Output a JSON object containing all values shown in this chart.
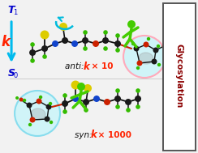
{
  "bg_color": "#f2f2f2",
  "t1_text": "T",
  "t1_sub": "1",
  "t1_color": "#0000cc",
  "k_color": "#ff2200",
  "s0_text": "S",
  "s0_sub": "0",
  "s0_color": "#0000cc",
  "arrow_color": "#00bbee",
  "glyco_text": "Glycosylation",
  "glyco_color": "#8b0000",
  "glyco_box_edge": "#555555",
  "anti_text": "anti: ",
  "anti_k": "k",
  "anti_mult": " × 10",
  "syn_text": "syn: ",
  "syn_k": "k",
  "syn_mult": " × 1000",
  "anti_circle_color": "#d0f4f8",
  "anti_circle_edge": "#ffaabb",
  "syn_circle_color": "#d0f4f8",
  "syn_circle_edge": "#88ddee",
  "green_man": "#44cc00",
  "cyan_arrow": "#00bbdd",
  "mol_dark": "#1a1a1a",
  "mol_blue": "#1144cc",
  "mol_red": "#cc2200",
  "mol_green": "#33bb00",
  "mol_yellow": "#ddcc00",
  "mol_bond": "#111111",
  "sugar_grey": "#888888"
}
